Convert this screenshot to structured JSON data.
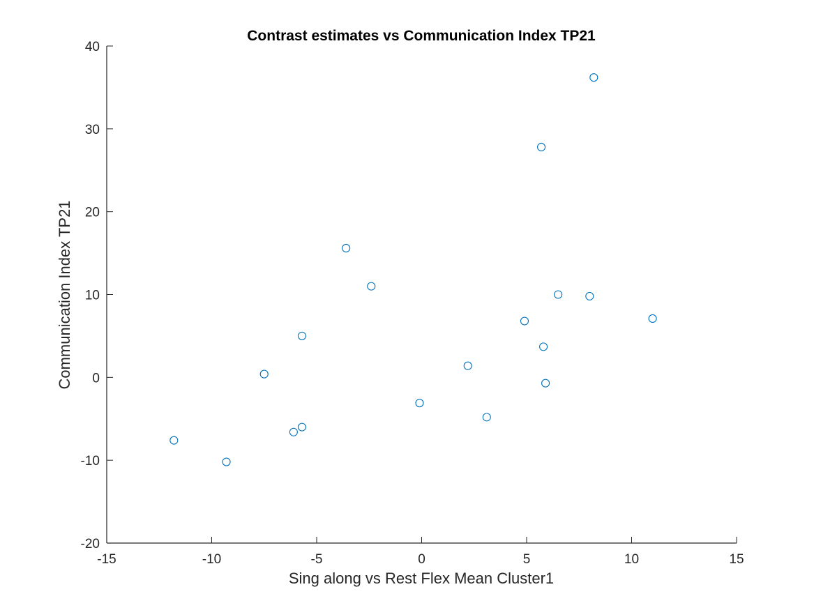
{
  "chart_data": {
    "type": "scatter",
    "title": "Contrast estimates vs Communication Index TP21",
    "xlabel": "Sing along vs Rest Flex Mean Cluster1",
    "ylabel": "Communication Index TP21",
    "xlim": [
      -15,
      15
    ],
    "ylim": [
      -20,
      40
    ],
    "xticks": [
      -15,
      -10,
      -5,
      0,
      5,
      10,
      15
    ],
    "yticks": [
      -20,
      -10,
      0,
      10,
      20,
      30,
      40
    ],
    "xtick_labels": [
      "-15",
      "-10",
      "-5",
      "0",
      "5",
      "10",
      "15"
    ],
    "ytick_labels": [
      "-20",
      "-10",
      "0",
      "10",
      "20",
      "30",
      "40"
    ],
    "grid": false,
    "legend": "none",
    "marker": "open-circle",
    "marker_color": "#0072BD",
    "axis_color": "#262626",
    "series": [
      {
        "points": [
          {
            "x": -11.8,
            "y": -7.6
          },
          {
            "x": -9.3,
            "y": -10.2
          },
          {
            "x": -7.5,
            "y": 0.4
          },
          {
            "x": -6.1,
            "y": -6.6
          },
          {
            "x": -5.7,
            "y": -6.0
          },
          {
            "x": -5.7,
            "y": 5.0
          },
          {
            "x": -3.6,
            "y": 15.6
          },
          {
            "x": -2.4,
            "y": 11.0
          },
          {
            "x": -0.1,
            "y": -3.1
          },
          {
            "x": 2.2,
            "y": 1.4
          },
          {
            "x": 3.1,
            "y": -4.8
          },
          {
            "x": 4.9,
            "y": 6.8
          },
          {
            "x": 5.7,
            "y": 27.8
          },
          {
            "x": 5.8,
            "y": 3.7
          },
          {
            "x": 5.9,
            "y": -0.7
          },
          {
            "x": 6.5,
            "y": 10.0
          },
          {
            "x": 8.0,
            "y": 9.8
          },
          {
            "x": 8.2,
            "y": 36.2
          },
          {
            "x": 11.0,
            "y": 7.1
          }
        ]
      }
    ]
  }
}
